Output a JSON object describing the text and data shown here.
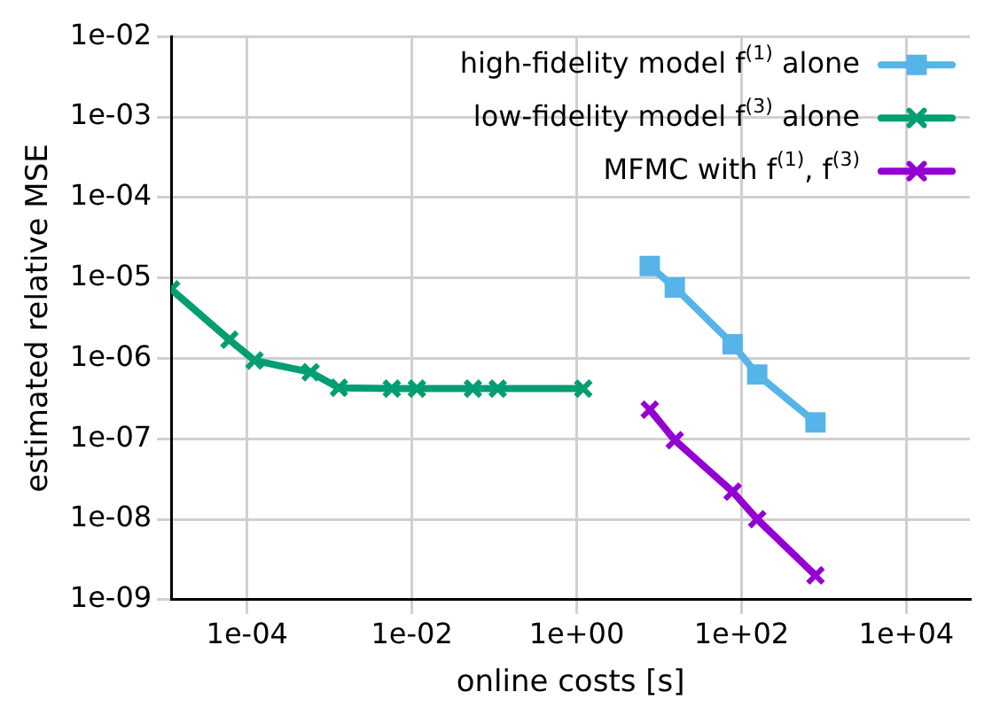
{
  "chart_data": {
    "type": "line",
    "xlabel": "online costs [s]",
    "ylabel": "estimated relative MSE",
    "log": "xy",
    "grid": true,
    "legend": "top right",
    "line_style": "solid",
    "xlim": [
      1.2e-05,
      59000.0
    ],
    "xticks": [
      {
        "value": 0.0001,
        "label": "1e-04"
      },
      {
        "value": 0.01,
        "label": "1e-02"
      },
      {
        "value": 1,
        "label": "1e+00"
      },
      {
        "value": 100,
        "label": "1e+02"
      },
      {
        "value": 10000,
        "label": "1e+04"
      }
    ],
    "ylim": [
      1e-09,
      0.01
    ],
    "yticks": [
      {
        "value": 1e-09,
        "label": "1e-09"
      },
      {
        "value": 1e-08,
        "label": "1e-08"
      },
      {
        "value": 1e-07,
        "label": "1e-07"
      },
      {
        "value": 1e-06,
        "label": "1e-06"
      },
      {
        "value": 1e-05,
        "label": "1e-05"
      },
      {
        "value": 0.0001,
        "label": "1e-04"
      },
      {
        "value": 0.001,
        "label": "1e-03"
      },
      {
        "value": 0.01,
        "label": "1e-02"
      }
    ],
    "series": [
      {
        "name": "high-fidelity model f$^{(1)}$ alone",
        "color": "#56b4e9",
        "marker": "square",
        "x": [
          7.7,
          15.5,
          78,
          155,
          790
        ],
        "values": [
          1.4e-05,
          7.6e-06,
          1.5e-06,
          6.3e-07,
          1.6e-07
        ]
      },
      {
        "name": "low-fidelity model f$^{(3)}$ alone",
        "color": "#009e73",
        "marker": "cross",
        "x": [
          1.2e-05,
          6.1e-05,
          0.000123,
          0.00059,
          0.0013,
          0.0057,
          0.0115,
          0.055,
          0.11,
          1.2
        ],
        "values": [
          7.2e-06,
          1.7e-06,
          9.4e-07,
          6.7e-07,
          4.3e-07,
          4.2e-07,
          4.2e-07,
          4.2e-07,
          4.2e-07,
          4.2e-07
        ]
      },
      {
        "name": "MFMC with f$^{(1)}$, f$^{(3)}$",
        "color": "#9400d3",
        "marker": "cross",
        "x": [
          7.7,
          15.5,
          78,
          155,
          790
        ],
        "values": [
          2.3e-07,
          9.6e-08,
          2.2e-08,
          1e-08,
          2e-09
        ]
      }
    ]
  }
}
